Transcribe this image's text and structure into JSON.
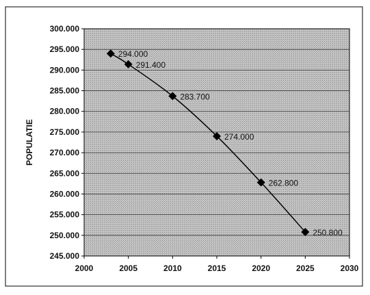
{
  "chart_data": {
    "type": "scatter",
    "title": "",
    "xlabel": "",
    "ylabel": "POPULATIE",
    "x": [
      2003,
      2005,
      2010,
      2015,
      2020,
      2025
    ],
    "values": [
      294000,
      291400,
      283700,
      274000,
      262800,
      250800
    ],
    "data_labels": [
      "294.000",
      "291.400",
      "283.700",
      "274.000",
      "262.800",
      "250.800"
    ],
    "xlim": [
      2000,
      2030
    ],
    "ylim": [
      245000,
      300000
    ],
    "x_ticks": [
      "2000",
      "2005",
      "2010",
      "2015",
      "2020",
      "2025",
      "2030"
    ],
    "y_ticks": [
      "300.000",
      "295.000",
      "290.000",
      "285.000",
      "280.000",
      "275.000",
      "270.000",
      "265.000",
      "260.000",
      "255.000",
      "250.000",
      "245.000"
    ],
    "grid": true,
    "legend": "none",
    "marker": "diamond",
    "line": "smooth",
    "colors": {
      "plot_background": "#b8b8b8",
      "gridline": "#333333",
      "series": "#000000"
    }
  }
}
